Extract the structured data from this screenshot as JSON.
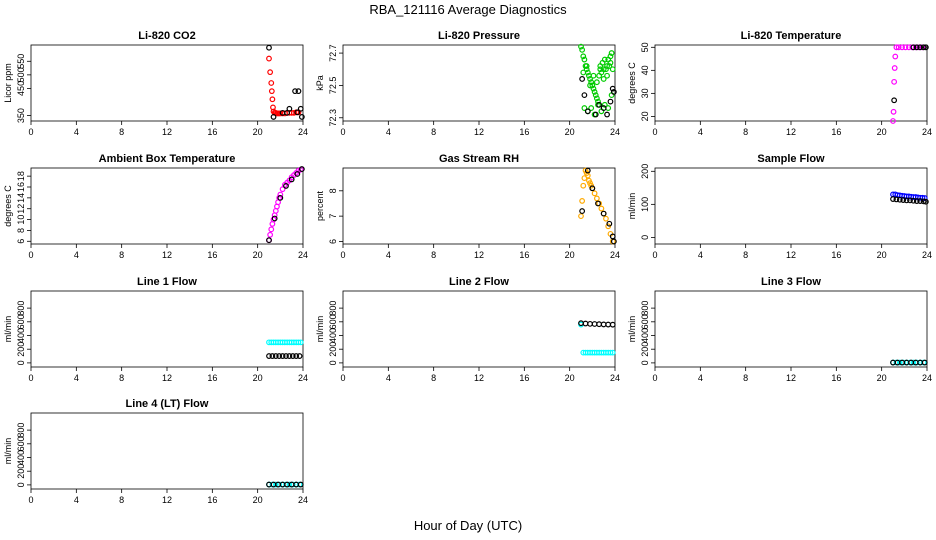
{
  "page": {
    "title": "RBA_121116  Average Diagnostics",
    "x_axis_label": "Hour of Day (UTC)"
  },
  "colors": {
    "black": "#000000",
    "red": "#ff0000",
    "green": "#00cc00",
    "magenta": "#ff00ff",
    "orange": "#ffaa00",
    "blue": "#0000ff",
    "cyan": "#00ffff"
  },
  "chart_data": [
    {
      "type": "scatter",
      "title": "Li-820 CO2",
      "xlabel": "",
      "ylabel": "Licor ppm",
      "xlim": [
        0,
        24
      ],
      "xticks": [
        0,
        4,
        8,
        12,
        16,
        20,
        24
      ],
      "ylim": [
        330,
        610
      ],
      "yticks": [
        350,
        450,
        500,
        550
      ],
      "series": [
        {
          "color": "red",
          "x": [
            21.0,
            21.1,
            21.2,
            21.25,
            21.3,
            21.35,
            21.4,
            21.5,
            21.6,
            21.7,
            21.8,
            21.9,
            22.0,
            22.2,
            22.4,
            22.6,
            22.8,
            23.0,
            23.2,
            23.4,
            23.6
          ],
          "y": [
            560,
            510,
            470,
            440,
            410,
            380,
            365,
            360,
            360,
            358,
            358,
            358,
            358,
            358,
            358,
            360,
            360,
            360,
            360,
            362,
            362
          ]
        },
        {
          "color": "black",
          "x": [
            21.0,
            21.4,
            22.2,
            22.8,
            23.3,
            23.6,
            23.8,
            23.9,
            23.5,
            22.6
          ],
          "y": [
            600,
            345,
            360,
            375,
            440,
            440,
            375,
            345,
            362,
            360
          ]
        }
      ]
    },
    {
      "type": "scatter",
      "title": "Li-820 Pressure",
      "xlabel": "",
      "ylabel": "kPa",
      "xlim": [
        0,
        24
      ],
      "xticks": [
        0,
        4,
        8,
        12,
        16,
        20,
        24
      ],
      "ylim": [
        72.28,
        72.75
      ],
      "yticks": [
        72.3,
        72.5,
        72.7
      ],
      "series": [
        {
          "color": "green",
          "x": [
            21.0,
            21.1,
            21.2,
            21.3,
            21.4,
            21.5,
            21.6,
            21.7,
            21.8,
            21.9,
            22.0,
            22.1,
            22.2,
            22.3,
            22.4,
            22.5,
            22.6,
            22.7,
            22.8,
            22.9,
            23.0,
            23.1,
            23.2,
            23.3,
            23.4,
            23.5,
            23.6,
            23.7,
            23.8,
            21.3,
            21.6,
            21.9,
            22.2,
            22.5,
            22.8,
            23.1,
            23.4,
            23.7,
            21.2,
            21.5,
            21.8,
            22.1,
            22.4,
            22.7,
            23.0,
            23.3,
            23.6
          ],
          "y": [
            72.74,
            72.72,
            72.68,
            72.66,
            72.62,
            72.6,
            72.58,
            72.56,
            72.54,
            72.52,
            72.5,
            72.48,
            72.46,
            72.44,
            72.42,
            72.4,
            72.56,
            72.62,
            72.58,
            72.64,
            72.6,
            72.66,
            72.6,
            72.62,
            72.66,
            72.62,
            72.68,
            72.7,
            72.6,
            72.36,
            72.34,
            72.36,
            72.32,
            72.38,
            72.34,
            72.38,
            72.36,
            72.44,
            72.58,
            72.62,
            72.5,
            72.56,
            72.52,
            72.6,
            72.54,
            72.56,
            72.64
          ]
        },
        {
          "color": "black",
          "x": [
            21.1,
            21.3,
            21.6,
            22.3,
            22.6,
            23.0,
            23.3,
            23.6,
            23.8,
            23.9
          ],
          "y": [
            72.54,
            72.44,
            72.34,
            72.32,
            72.38,
            72.36,
            72.32,
            72.4,
            72.48,
            72.46
          ]
        }
      ]
    },
    {
      "type": "scatter",
      "title": "Li-820 Temperature",
      "xlabel": "",
      "ylabel": "degrees C",
      "xlim": [
        0,
        24
      ],
      "xticks": [
        0,
        4,
        8,
        12,
        16,
        20,
        24
      ],
      "ylim": [
        18,
        51
      ],
      "yticks": [
        20,
        30,
        40,
        50
      ],
      "series": [
        {
          "color": "magenta",
          "x": [
            21.0,
            21.05,
            21.1,
            21.15,
            21.2,
            21.3,
            21.5,
            21.8,
            22.1,
            22.4,
            22.7,
            23.0,
            23.3,
            23.6
          ],
          "y": [
            18,
            22,
            35,
            41,
            46,
            50,
            50,
            50,
            50,
            50,
            50,
            50,
            50,
            50
          ]
        },
        {
          "color": "black",
          "x": [
            21.1,
            22.8,
            23.1,
            23.4,
            23.7,
            23.9
          ],
          "y": [
            27,
            50,
            50,
            50,
            50,
            50
          ]
        }
      ]
    },
    {
      "type": "scatter",
      "title": "Ambient Box Temperature",
      "xlabel": "",
      "ylabel": "degrees C",
      "xlim": [
        0,
        24
      ],
      "xticks": [
        0,
        4,
        8,
        12,
        16,
        20,
        24
      ],
      "ylim": [
        5.5,
        19.5
      ],
      "yticks": [
        6,
        8,
        10,
        12,
        14,
        16,
        18
      ],
      "series": [
        {
          "color": "magenta",
          "x": [
            21.0,
            21.1,
            21.2,
            21.3,
            21.4,
            21.5,
            21.6,
            21.7,
            21.8,
            21.9,
            22.0,
            22.2,
            22.4,
            22.6,
            22.8,
            23.0,
            23.2,
            23.4,
            23.6,
            23.8
          ],
          "y": [
            6.2,
            7.2,
            8.2,
            9.2,
            10.0,
            10.8,
            11.6,
            12.4,
            13.2,
            14.0,
            14.6,
            15.6,
            16.4,
            16.8,
            17.2,
            17.8,
            18.2,
            18.6,
            19.0,
            19.2
          ]
        },
        {
          "color": "black",
          "x": [
            21.0,
            21.5,
            22.0,
            22.5,
            23.0,
            23.5,
            23.9
          ],
          "y": [
            6.2,
            10.2,
            14.0,
            16.2,
            17.4,
            18.4,
            19.3
          ]
        }
      ]
    },
    {
      "type": "scatter",
      "title": "Gas Stream RH",
      "xlabel": "",
      "ylabel": "percent",
      "xlim": [
        0,
        24
      ],
      "xticks": [
        0,
        4,
        8,
        12,
        16,
        20,
        24
      ],
      "ylim": [
        5.9,
        8.9
      ],
      "yticks": [
        6.0,
        7.0,
        8.0
      ],
      "series": [
        {
          "color": "orange",
          "x": [
            21.0,
            21.1,
            21.2,
            21.3,
            21.4,
            21.5,
            21.6,
            21.7,
            21.8,
            21.9,
            22.0,
            22.2,
            22.4,
            22.6,
            22.8,
            23.0,
            23.2,
            23.4,
            23.6,
            23.8
          ],
          "y": [
            7.0,
            7.6,
            8.2,
            8.5,
            8.8,
            8.7,
            8.6,
            8.4,
            8.3,
            8.2,
            8.1,
            7.9,
            7.7,
            7.5,
            7.3,
            7.1,
            6.9,
            6.6,
            6.3,
            6.0
          ]
        },
        {
          "color": "black",
          "x": [
            21.1,
            21.6,
            22.0,
            22.5,
            23.0,
            23.5,
            23.8,
            23.9
          ],
          "y": [
            7.2,
            8.8,
            8.1,
            7.5,
            7.1,
            6.7,
            6.2,
            6.0
          ]
        }
      ]
    },
    {
      "type": "scatter",
      "title": "Sample Flow",
      "xlabel": "",
      "ylabel": "ml/min",
      "xlim": [
        0,
        24
      ],
      "xticks": [
        0,
        4,
        8,
        12,
        16,
        20,
        24
      ],
      "ylim": [
        -20,
        210
      ],
      "yticks": [
        0,
        100,
        200
      ],
      "series": [
        {
          "color": "blue",
          "x": [
            21.0,
            21.2,
            21.4,
            21.6,
            21.8,
            22.0,
            22.2,
            22.4,
            22.6,
            22.8,
            23.0,
            23.2,
            23.4,
            23.6,
            23.8
          ],
          "y": [
            130,
            130,
            128,
            127,
            126,
            125,
            124,
            124,
            123,
            122,
            122,
            121,
            120,
            120,
            119
          ]
        },
        {
          "color": "black",
          "x": [
            21.0,
            21.3,
            21.6,
            21.9,
            22.2,
            22.5,
            22.8,
            23.1,
            23.4,
            23.7,
            23.9
          ],
          "y": [
            116,
            115,
            114,
            113,
            112,
            112,
            111,
            110,
            110,
            109,
            108
          ]
        }
      ]
    },
    {
      "type": "scatter",
      "title": "Line 1 Flow",
      "xlabel": "",
      "ylabel": "ml/min",
      "xlim": [
        0,
        24
      ],
      "xticks": [
        0,
        4,
        8,
        12,
        16,
        20,
        24
      ],
      "ylim": [
        -60,
        1050
      ],
      "yticks": [
        0,
        200,
        400,
        600,
        800
      ],
      "series": [
        {
          "color": "cyan",
          "x": [
            21.0,
            21.2,
            21.4,
            21.6,
            21.8,
            22.0,
            22.2,
            22.4,
            22.6,
            22.8,
            23.0,
            23.2,
            23.4,
            23.6,
            23.8
          ],
          "y": [
            300,
            300,
            300,
            300,
            300,
            300,
            300,
            300,
            300,
            300,
            300,
            300,
            300,
            300,
            300
          ]
        },
        {
          "color": "black",
          "x": [
            21.0,
            21.3,
            21.6,
            21.9,
            22.2,
            22.5,
            22.8,
            23.1,
            23.4,
            23.7
          ],
          "y": [
            100,
            100,
            100,
            100,
            100,
            100,
            100,
            100,
            100,
            100
          ]
        }
      ]
    },
    {
      "type": "scatter",
      "title": "Line 2 Flow",
      "xlabel": "",
      "ylabel": "ml/min",
      "xlim": [
        0,
        24
      ],
      "xticks": [
        0,
        4,
        8,
        12,
        16,
        20,
        24
      ],
      "ylim": [
        -60,
        1050
      ],
      "yticks": [
        0,
        200,
        400,
        600,
        800
      ],
      "series": [
        {
          "color": "cyan",
          "x": [
            21.0,
            21.2,
            21.4,
            21.6,
            21.8,
            22.0,
            22.2,
            22.4,
            22.6,
            22.8,
            23.0,
            23.2,
            23.4,
            23.6,
            23.8
          ],
          "y": [
            560,
            150,
            150,
            150,
            150,
            150,
            150,
            150,
            150,
            150,
            150,
            150,
            150,
            150,
            150
          ]
        },
        {
          "color": "black",
          "x": [
            21.0,
            21.4,
            21.8,
            22.2,
            22.6,
            23.0,
            23.4,
            23.8
          ],
          "y": [
            580,
            575,
            570,
            568,
            565,
            562,
            560,
            558
          ]
        }
      ]
    },
    {
      "type": "scatter",
      "title": "Line 3 Flow",
      "xlabel": "",
      "ylabel": "ml/min",
      "xlim": [
        0,
        24
      ],
      "xticks": [
        0,
        4,
        8,
        12,
        16,
        20,
        24
      ],
      "ylim": [
        -60,
        1050
      ],
      "yticks": [
        0,
        200,
        400,
        600,
        800
      ],
      "series": [
        {
          "color": "cyan",
          "x": [
            21.0,
            21.3,
            21.6,
            21.9,
            22.2,
            22.5,
            22.8,
            23.1,
            23.4,
            23.7
          ],
          "y": [
            5,
            5,
            5,
            5,
            5,
            5,
            5,
            5,
            5,
            5
          ]
        },
        {
          "color": "black",
          "x": [
            21.0,
            21.4,
            21.8,
            22.2,
            22.6,
            23.0,
            23.4,
            23.8
          ],
          "y": [
            5,
            5,
            5,
            5,
            5,
            5,
            5,
            5
          ]
        }
      ]
    },
    {
      "type": "scatter",
      "title": "Line 4 (LT) Flow",
      "xlabel": "",
      "ylabel": "ml/min",
      "xlim": [
        0,
        24
      ],
      "xticks": [
        0,
        4,
        8,
        12,
        16,
        20,
        24
      ],
      "ylim": [
        -60,
        1050
      ],
      "yticks": [
        0,
        200,
        400,
        600,
        800
      ],
      "series": [
        {
          "color": "cyan",
          "x": [
            21.0,
            21.3,
            21.6,
            21.9,
            22.2,
            22.5,
            22.8,
            23.1,
            23.4,
            23.7
          ],
          "y": [
            5,
            5,
            5,
            5,
            5,
            5,
            5,
            5,
            5,
            5
          ]
        },
        {
          "color": "black",
          "x": [
            21.0,
            21.4,
            21.8,
            22.2,
            22.6,
            23.0,
            23.4,
            23.8
          ],
          "y": [
            5,
            5,
            5,
            5,
            5,
            5,
            5,
            5
          ]
        }
      ]
    }
  ]
}
